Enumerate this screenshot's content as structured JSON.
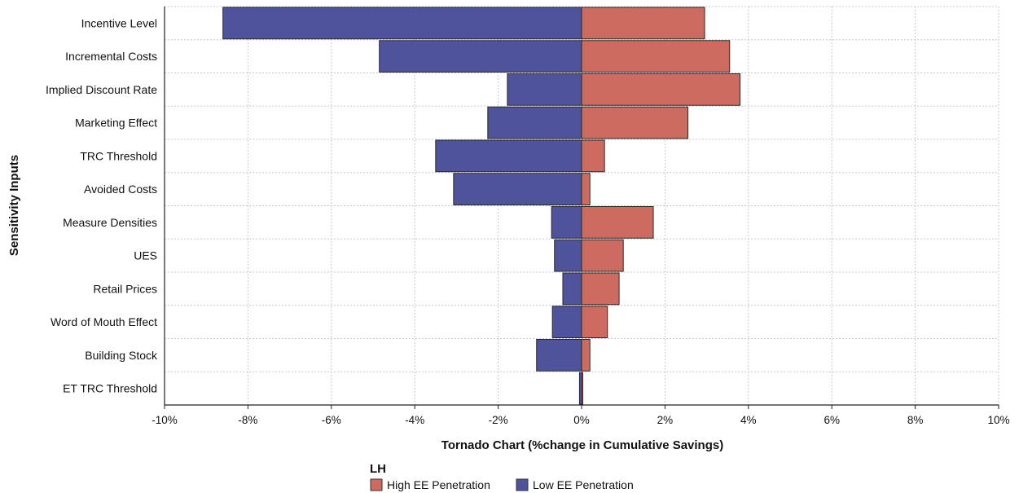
{
  "chart_data": {
    "type": "bar",
    "orientation": "horizontal",
    "subtype": "tornado",
    "title": "",
    "xlabel": "Tornado Chart (%change in Cumulative Savings)",
    "ylabel": "Sensitivity Inputs",
    "xlim": [
      -10,
      10
    ],
    "x_ticks": [
      -10,
      -8,
      -6,
      -4,
      -2,
      0,
      2,
      4,
      6,
      8,
      10
    ],
    "x_tick_labels": [
      "-10%",
      "-8%",
      "-6%",
      "-4%",
      "-2%",
      "0%",
      "2%",
      "4%",
      "6%",
      "8%",
      "10%"
    ],
    "grid": true,
    "categories": [
      "Incentive Level",
      "Incremental Costs",
      "Implied Discount Rate",
      "Marketing Effect",
      "TRC Threshold",
      "Avoided Costs",
      "Measure Densities",
      "UES",
      "Retail Prices",
      "Word of Mouth Effect",
      "Building Stock",
      "ET TRC Threshold"
    ],
    "series": [
      {
        "name": "High EE Penetration",
        "color": "#cd6b60",
        "values": [
          2.95,
          3.55,
          3.8,
          2.55,
          0.55,
          0.2,
          1.72,
          1.0,
          0.9,
          0.62,
          0.2,
          0.03
        ]
      },
      {
        "name": "Low EE Penetration",
        "color": "#4f539c",
        "values": [
          -8.6,
          -4.85,
          -1.78,
          -2.25,
          -3.5,
          -3.07,
          -0.72,
          -0.65,
          -0.45,
          -0.7,
          -1.08,
          -0.05
        ]
      }
    ],
    "legend": {
      "title": "LH",
      "position": "bottom-center"
    }
  }
}
